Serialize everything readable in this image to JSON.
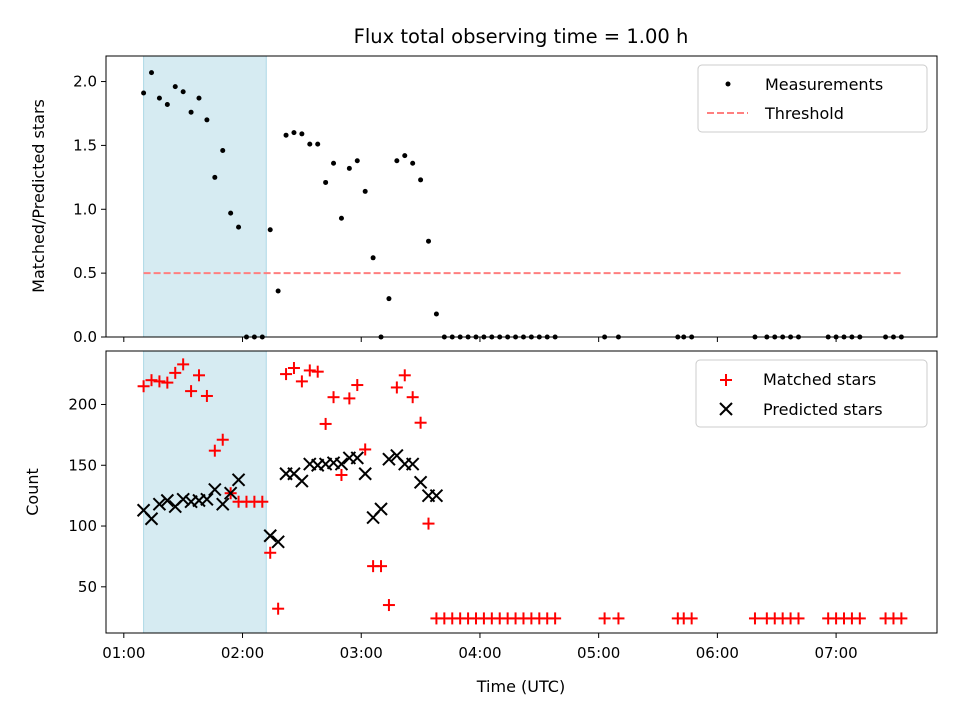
{
  "chart_data": [
    {
      "type": "scatter",
      "title": "Flux total observing time = 1.00 h",
      "xlabel": "",
      "ylabel": "Matched/Predicted stars",
      "ylim": [
        0,
        2.2
      ],
      "yticks": [
        "0.0",
        "0.5",
        "1.0",
        "1.5",
        "2.0"
      ],
      "xlim": [
        "00:51",
        "07:51"
      ],
      "grid": false,
      "legend_placement": "upper right",
      "shaded_interval": {
        "start": "01:10",
        "end": "02:12",
        "color": "#add8e6"
      },
      "series": [
        {
          "name": "Measurements",
          "color": "#000000",
          "marker": "dot",
          "x": [
            "01:10",
            "01:14",
            "01:18",
            "01:22",
            "01:26",
            "01:30",
            "01:34",
            "01:38",
            "01:42",
            "01:46",
            "01:50",
            "01:54",
            "01:58",
            "02:02",
            "02:06",
            "02:10",
            "02:14",
            "02:18",
            "02:22",
            "02:26",
            "02:30",
            "02:34",
            "02:38",
            "02:42",
            "02:46",
            "02:50",
            "02:54",
            "02:58",
            "03:02",
            "03:06",
            "03:10",
            "03:14",
            "03:18",
            "03:22",
            "03:26",
            "03:30",
            "03:34",
            "03:38",
            "03:42",
            "03:46",
            "03:50",
            "03:54",
            "03:58",
            "04:02",
            "04:06",
            "04:10",
            "04:14",
            "04:18",
            "04:22",
            "04:26",
            "04:30",
            "04:34",
            "04:38",
            "05:03",
            "05:10",
            "05:40",
            "05:43",
            "05:47",
            "06:19",
            "06:25",
            "06:29",
            "06:33",
            "06:37",
            "06:41",
            "06:56",
            "07:00",
            "07:04",
            "07:08",
            "07:12",
            "07:25",
            "07:29",
            "07:33"
          ],
          "y": [
            1.91,
            2.07,
            1.87,
            1.82,
            1.96,
            1.92,
            1.76,
            1.87,
            1.7,
            1.25,
            1.46,
            0.97,
            0.86,
            0,
            0,
            0,
            0.84,
            0.36,
            1.58,
            1.6,
            1.59,
            1.51,
            1.51,
            1.21,
            1.36,
            0.93,
            1.32,
            1.38,
            1.14,
            0.62,
            0,
            0.3,
            1.38,
            1.42,
            1.36,
            1.23,
            0.75,
            0.18,
            0,
            0,
            0,
            0,
            0,
            0,
            0,
            0,
            0,
            0,
            0,
            0,
            0,
            0,
            0,
            0,
            0,
            0,
            0,
            0,
            0,
            0,
            0,
            0,
            0,
            0,
            0,
            0,
            0,
            0,
            0,
            0,
            0,
            0
          ]
        },
        {
          "name": "Threshold",
          "color": "#ff7f7f",
          "style": "dashed",
          "x": [
            "01:10",
            "07:33"
          ],
          "y": [
            0.5,
            0.5
          ]
        }
      ]
    },
    {
      "type": "scatter",
      "title": "",
      "xlabel": "Time (UTC)",
      "ylabel": "Count",
      "ylim": [
        12,
        244
      ],
      "yticks": [
        "50",
        "100",
        "150",
        "200"
      ],
      "xticks": [
        "01:00",
        "02:00",
        "03:00",
        "04:00",
        "05:00",
        "06:00",
        "07:00"
      ],
      "xlim": [
        "00:51",
        "07:51"
      ],
      "grid": false,
      "legend_placement": "upper right",
      "shaded_interval": {
        "start": "01:10",
        "end": "02:12",
        "color": "#add8e6"
      },
      "series": [
        {
          "name": "Matched stars",
          "color": "#ff0000",
          "marker": "plus",
          "x": [
            "01:10",
            "01:14",
            "01:18",
            "01:22",
            "01:26",
            "01:30",
            "01:34",
            "01:38",
            "01:42",
            "01:46",
            "01:50",
            "01:54",
            "01:58",
            "02:02",
            "02:06",
            "02:10",
            "02:14",
            "02:18",
            "02:22",
            "02:26",
            "02:30",
            "02:34",
            "02:38",
            "02:42",
            "02:46",
            "02:50",
            "02:54",
            "02:58",
            "03:02",
            "03:06",
            "03:10",
            "03:14",
            "03:18",
            "03:22",
            "03:26",
            "03:30",
            "03:34",
            "03:38",
            "03:42",
            "03:46",
            "03:50",
            "03:54",
            "03:58",
            "04:02",
            "04:06",
            "04:10",
            "04:14",
            "04:18",
            "04:22",
            "04:26",
            "04:30",
            "04:34",
            "04:38",
            "05:03",
            "05:10",
            "05:40",
            "05:43",
            "05:47",
            "06:19",
            "06:25",
            "06:29",
            "06:33",
            "06:37",
            "06:41",
            "06:56",
            "07:00",
            "07:04",
            "07:08",
            "07:12",
            "07:25",
            "07:29",
            "07:33"
          ],
          "y": [
            215,
            220,
            219,
            218,
            226,
            233,
            211,
            224,
            207,
            162,
            171,
            127,
            120,
            120,
            120,
            120,
            78,
            32,
            225,
            230,
            219,
            228,
            227,
            184,
            206,
            142,
            205,
            216,
            163,
            67,
            67,
            35,
            214,
            224,
            206,
            185,
            102,
            24,
            24,
            24,
            24,
            24,
            24,
            24,
            24,
            24,
            24,
            24,
            24,
            24,
            24,
            24,
            24,
            24,
            24,
            24,
            24,
            24,
            24,
            24,
            24,
            24,
            24,
            24,
            24,
            24,
            24,
            24,
            24,
            24,
            24,
            24
          ]
        },
        {
          "name": "Predicted stars",
          "color": "#000000",
          "marker": "x",
          "x": [
            "01:10",
            "01:14",
            "01:18",
            "01:22",
            "01:26",
            "01:30",
            "01:34",
            "01:38",
            "01:42",
            "01:46",
            "01:50",
            "01:54",
            "01:58",
            "02:14",
            "02:18",
            "02:22",
            "02:26",
            "02:30",
            "02:34",
            "02:38",
            "02:42",
            "02:46",
            "02:50",
            "02:54",
            "02:58",
            "03:02",
            "03:06",
            "03:10",
            "03:14",
            "03:18",
            "03:22",
            "03:26",
            "03:30",
            "03:34",
            "03:38"
          ],
          "y": [
            113,
            106,
            118,
            121,
            116,
            122,
            120,
            121,
            122,
            130,
            118,
            127,
            138,
            92,
            87,
            143,
            143,
            137,
            151,
            150,
            151,
            152,
            151,
            156,
            156,
            143,
            107,
            114,
            155,
            158,
            151,
            151,
            136,
            125,
            125
          ]
        }
      ]
    }
  ]
}
